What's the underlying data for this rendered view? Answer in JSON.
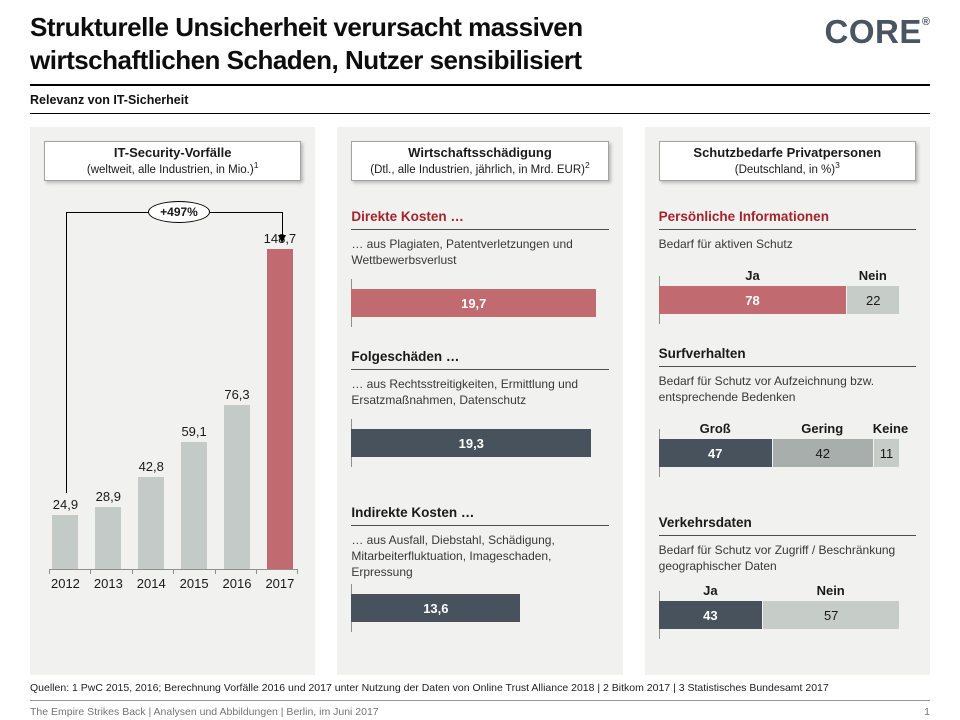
{
  "slide": {
    "title_lines": [
      "Strukturelle Unsicherheit verursacht massiven",
      "wirtschaftlichen Schaden, Nutzer sensibilisiert"
    ],
    "kicker": "Relevanz von IT-Sicherheit",
    "logo": {
      "text": "CORE",
      "registered_mark": "®"
    },
    "sources": "Quellen: 1 PwC 2015, 2016; Berechnung Vorfälle 2016 und 2017 unter Nutzung der Daten von Online Trust Alliance 2018 | 2 Bitkom 2017 | 3 Statistisches Bundesamt 2017",
    "footer_left": "The Empire Strikes Back | Analysen und Abbildungen | Berlin, im Juni 2017",
    "page_number": "1"
  },
  "colors": {
    "accent_red": "#c16a70",
    "heading_red": "#a5232d",
    "dark_slate": "#47525c",
    "light_gray_bar": "#c3cac7",
    "medium_gray_bar": "#a8aeac",
    "lighter_gray_bar": "#c6cdc9",
    "panel_background": "#f1f1ef"
  },
  "chart_data": [
    {
      "type": "bar",
      "panel_title": "IT-Security-Vorfälle",
      "panel_subtitle": "(weltweit, alle Industrien, in Mio.)",
      "footnote_ref": "1",
      "categories": [
        "2012",
        "2013",
        "2014",
        "2015",
        "2016",
        "2017"
      ],
      "values": [
        24.9,
        28.9,
        42.8,
        59.1,
        76.3,
        148.7
      ],
      "value_labels": [
        "24,9",
        "28,9",
        "42,8",
        "59,1",
        "76,3",
        "148,7"
      ],
      "annotation": "+497%",
      "highlight_index": 5,
      "ylim": [
        0,
        160
      ],
      "grid": false
    },
    {
      "type": "bar",
      "orientation": "horizontal",
      "panel_title": "Wirtschaftsschädigung",
      "panel_subtitle": "(Dtl., alle Industrien, jährlich, in Mrd. EUR)",
      "footnote_ref": "2",
      "xlim": [
        0,
        20
      ],
      "sections": [
        {
          "heading": "Direkte Kosten …",
          "description": "… aus Plagiaten, Patentverletzungen und Wettbewerbsverlust",
          "value": 19.7,
          "value_label": "19,7",
          "color": "red"
        },
        {
          "heading": "Folgeschäden …",
          "description": "… aus Rechtsstreitigkeiten, Ermittlung und Ersatzmaßnahmen, Datenschutz",
          "value": 19.3,
          "value_label": "19,3",
          "color": "dark"
        },
        {
          "heading": "Indirekte Kosten …",
          "description": "… aus Ausfall, Diebstahl, Schädigung, Mitarbeiterfluktuation, Imageschaden, Erpressung",
          "value": 13.6,
          "value_label": "13,6",
          "color": "dark"
        }
      ]
    },
    {
      "type": "stacked-bar",
      "panel_title": "Schutzbedarfe Privatpersonen",
      "panel_subtitle": "(Deutschland, in %)",
      "footnote_ref": "3",
      "sections": [
        {
          "heading": "Persönliche Informationen",
          "description": "Bedarf für aktiven Schutz",
          "segments": [
            {
              "label": "Ja",
              "value": 78,
              "color": "red"
            },
            {
              "label": "Nein",
              "value": 22,
              "color": "light"
            }
          ]
        },
        {
          "heading": "Surfverhalten",
          "description": "Bedarf für Schutz vor Aufzeichnung bzw. entsprechende Bedenken",
          "segments": [
            {
              "label": "Groß",
              "value": 47,
              "color": "dark"
            },
            {
              "label": "Gering",
              "value": 42,
              "color": "medium"
            },
            {
              "label": "Keine",
              "value": 11,
              "color": "light"
            }
          ]
        },
        {
          "heading": "Verkehrsdaten",
          "description": "Bedarf für Schutz vor Zugriff / Beschränkung geographischer Daten",
          "segments": [
            {
              "label": "Ja",
              "value": 43,
              "color": "dark"
            },
            {
              "label": "Nein",
              "value": 57,
              "color": "light"
            }
          ]
        }
      ]
    }
  ]
}
